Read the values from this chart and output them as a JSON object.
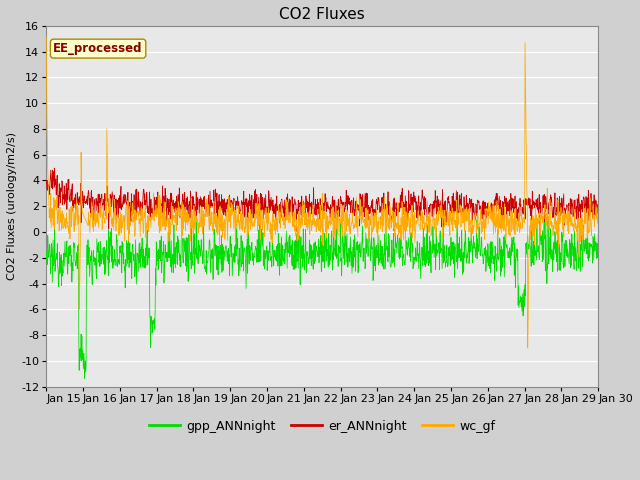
{
  "title": "CO2 Fluxes",
  "ylabel": "CO2 Fluxes (urology/m2/s)",
  "ylim": [
    -12,
    16
  ],
  "yticks": [
    -12,
    -10,
    -8,
    -6,
    -4,
    -2,
    0,
    2,
    4,
    6,
    8,
    10,
    12,
    14,
    16
  ],
  "xtick_labels": [
    "Jan 15",
    "Jan 16",
    "Jan 17",
    "Jan 18",
    "Jan 19",
    "Jan 20",
    "Jan 21",
    "Jan 22",
    "Jan 23",
    "Jan 24",
    "Jan 25",
    "Jan 26",
    "Jan 27",
    "Jan 28",
    "Jan 29",
    "Jan 30"
  ],
  "fig_bg": "#d0d0d0",
  "plot_bg": "#e8e8e8",
  "grid_color": "#ffffff",
  "colors": {
    "gpp_ANNnight": "#00dd00",
    "er_ANNnight": "#cc0000",
    "wc_gf": "#ffaa00"
  },
  "annotation_text": "EE_processed",
  "annotation_color": "#880000",
  "annotation_bg": "#ffffcc",
  "annotation_border": "#aa8800",
  "title_fontsize": 11,
  "label_fontsize": 8,
  "tick_fontsize": 8,
  "legend_fontsize": 9,
  "n_points": 1440
}
